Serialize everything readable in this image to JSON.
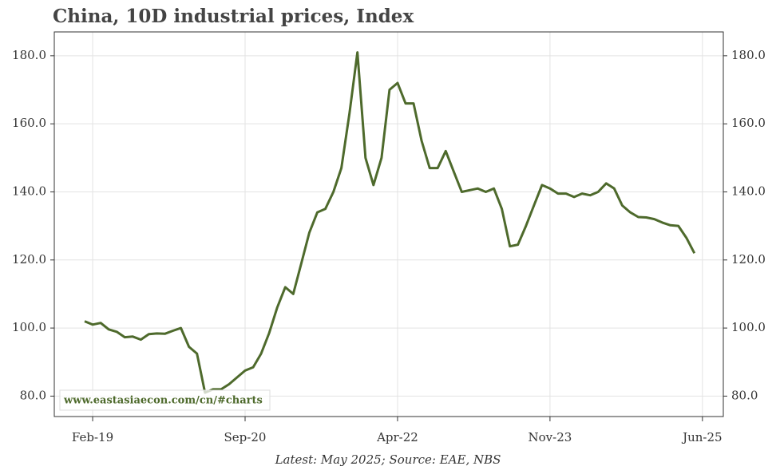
{
  "chart_data": {
    "type": "line",
    "title": "China, 10D industrial prices, Index",
    "footer": "Latest: May 2025; Source: EAE, NBS",
    "watermark": "www.eastasiaecon.com/cn/#charts",
    "x": [
      "Jan-19",
      "Feb-19",
      "Mar-19",
      "Apr-19",
      "May-19",
      "Jun-19",
      "Jul-19",
      "Aug-19",
      "Sep-19",
      "Oct-19",
      "Nov-19",
      "Dec-19",
      "Jan-20",
      "Feb-20",
      "Mar-20",
      "Apr-20",
      "May-20",
      "Jun-20",
      "Jul-20",
      "Aug-20",
      "Sep-20",
      "Oct-20",
      "Nov-20",
      "Dec-20",
      "Jan-21",
      "Feb-21",
      "Mar-21",
      "Apr-21",
      "May-21",
      "Jun-21",
      "Jul-21",
      "Aug-21",
      "Sep-21",
      "Oct-21",
      "Nov-21",
      "Dec-21",
      "Jan-22",
      "Feb-22",
      "Mar-22",
      "Apr-22",
      "May-22",
      "Jun-22",
      "Jul-22",
      "Aug-22",
      "Sep-22",
      "Oct-22",
      "Nov-22",
      "Dec-22",
      "Jan-23",
      "Feb-23",
      "Mar-23",
      "Apr-23",
      "May-23",
      "Jun-23",
      "Jul-23",
      "Aug-23",
      "Sep-23",
      "Oct-23",
      "Nov-23",
      "Dec-23",
      "Jan-24",
      "Feb-24",
      "Mar-24",
      "Apr-24",
      "May-24",
      "Jun-24",
      "Jul-24",
      "Aug-24",
      "Sep-24",
      "Oct-24",
      "Nov-24",
      "Dec-24",
      "Jan-25",
      "Feb-25",
      "Mar-25",
      "Apr-25",
      "May-25",
      "Jun-25"
    ],
    "series": [
      {
        "name": "Index",
        "color": "#4e6a2c",
        "values": [
          102,
          101,
          101.5,
          99.6,
          98.9,
          97.3,
          97.5,
          96.6,
          98.2,
          98.4,
          98.3,
          99.2,
          100,
          94.5,
          92.5,
          81,
          82,
          82,
          83.5,
          85.5,
          87.5,
          88.5,
          92.5,
          98.5,
          106,
          112,
          110,
          119,
          128,
          134,
          135,
          140,
          147,
          163,
          181,
          150,
          142,
          150,
          170,
          172,
          166,
          166,
          155,
          147,
          147,
          152,
          146,
          140,
          140.5,
          141,
          140,
          141,
          135,
          124,
          124.5,
          130,
          136,
          142,
          141,
          139.5,
          139.5,
          138.5,
          139.5,
          139,
          140,
          142.5,
          141,
          136,
          134,
          132.6,
          132.5,
          132,
          131,
          130.2,
          130,
          126.5,
          122,
          null
        ]
      }
    ],
    "xticks": [
      "Feb-19",
      "Sep-20",
      "Apr-22",
      "Nov-23",
      "Jun-25"
    ],
    "ylim": [
      74,
      187
    ],
    "yticks": [
      {
        "value": 80,
        "label": "80.0"
      },
      {
        "value": 100,
        "label": "100.0"
      },
      {
        "value": 120,
        "label": "120.0"
      },
      {
        "value": 140,
        "label": "140.0"
      },
      {
        "value": 160,
        "label": "160.0"
      },
      {
        "value": 180,
        "label": "180.0"
      }
    ],
    "grid": true
  }
}
